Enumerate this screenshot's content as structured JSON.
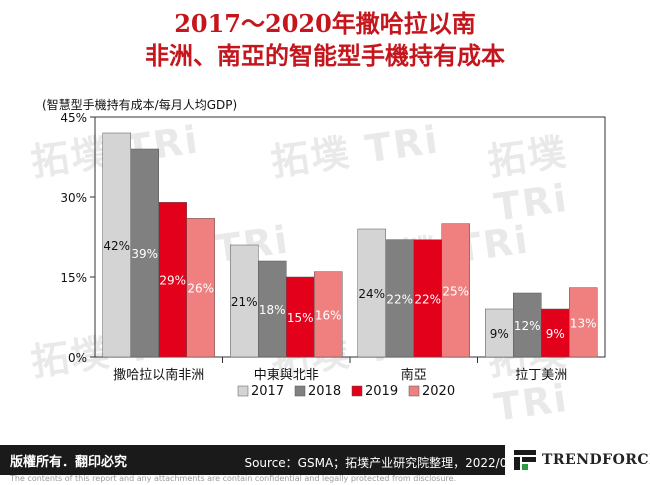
{
  "title": {
    "line1": "2017～2020年撒哈拉以南",
    "line2": "非洲、南亞的智能型手機持有成本"
  },
  "watermark_text": "拓墣 TRi",
  "colors": {
    "title": "#c4161c",
    "series_2017": "#d4d4d4",
    "series_2018": "#808080",
    "series_2019": "#e3001b",
    "series_2020": "#f08080"
  },
  "footer": {
    "copyright": "版權所有．翻印必究",
    "source": "Source：GSMA；拓墣产业研究院整理，2022/04",
    "logo_text": "TRENDFORCE",
    "disclaimer": "The contents of this report and any attachments are contain confidential and legally protected from disclosure."
  },
  "chart_data": {
    "type": "bar",
    "ylabel": "(智慧型手機持有成本/每月人均GDP)",
    "ylim": [
      0,
      45
    ],
    "yticks": [
      "0%",
      "15%",
      "30%",
      "45%"
    ],
    "ytick_values": [
      0,
      15,
      30,
      45
    ],
    "grid": false,
    "legend_position": "bottom",
    "categories": [
      "撒哈拉以南非洲",
      "中東與北非",
      "南亞",
      "拉丁美洲"
    ],
    "series": [
      {
        "name": "2017",
        "color": "#d4d4d4",
        "values": [
          42,
          21,
          24,
          9
        ],
        "labels": [
          "42%",
          "21%",
          "24%",
          "9%"
        ]
      },
      {
        "name": "2018",
        "color": "#808080",
        "values": [
          39,
          18,
          22,
          12
        ],
        "labels": [
          "39%",
          "18%",
          "22%",
          "12%"
        ]
      },
      {
        "name": "2019",
        "color": "#e3001b",
        "values": [
          29,
          15,
          22,
          9
        ],
        "labels": [
          "29%",
          "15%",
          "22%",
          "9%"
        ]
      },
      {
        "name": "2020",
        "color": "#f08080",
        "values": [
          26,
          16,
          25,
          13
        ],
        "labels": [
          "26%",
          "16%",
          "25%",
          "13%"
        ]
      }
    ]
  }
}
